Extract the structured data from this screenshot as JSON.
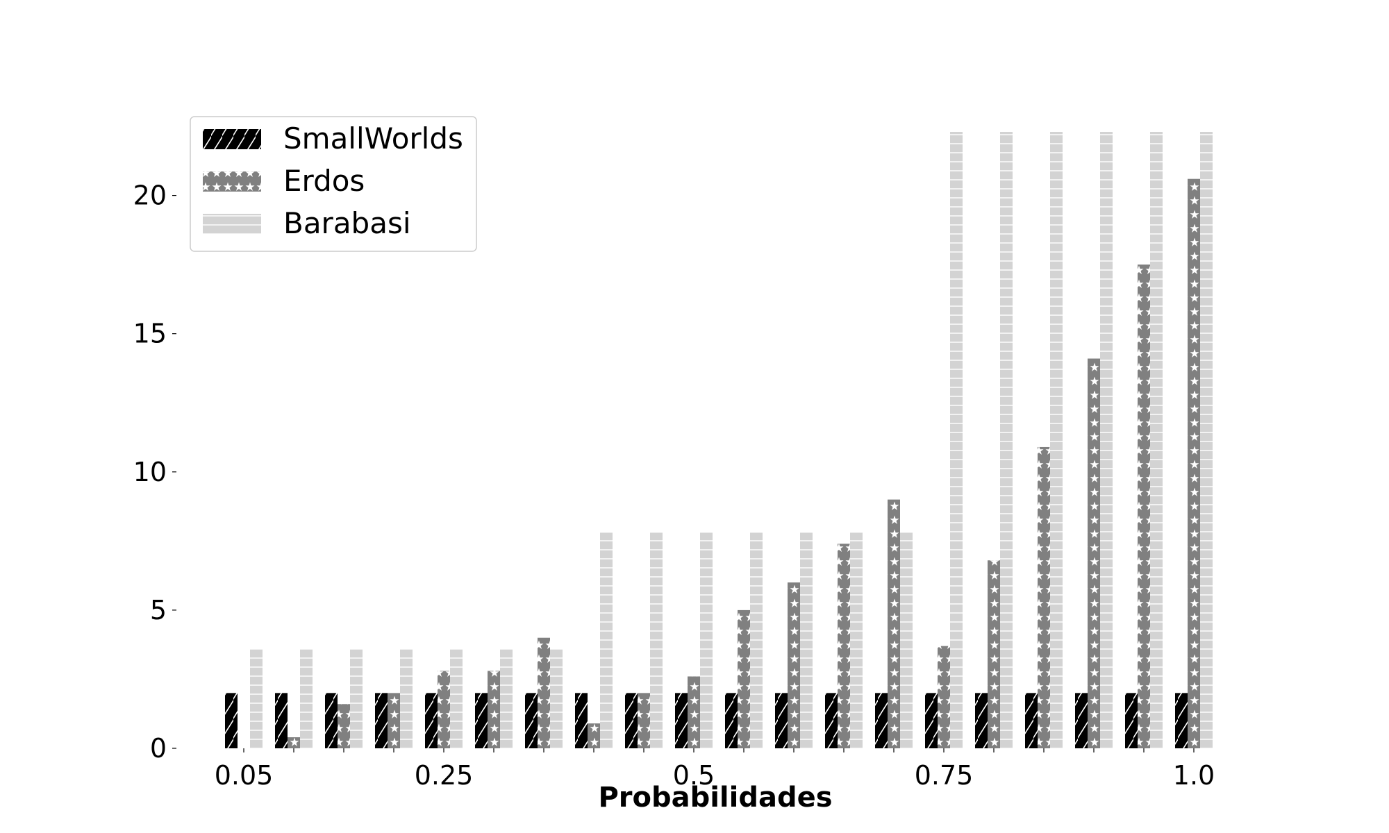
{
  "chart_data": {
    "type": "bar",
    "title": "",
    "xlabel": "Probabilidades",
    "ylabel": "",
    "ylim": [
      0,
      22.3
    ],
    "yticks": [
      0,
      5,
      10,
      15,
      20
    ],
    "categories": [
      "0.05",
      "0.1",
      "0.15",
      "0.2",
      "0.25",
      "0.3",
      "0.35",
      "0.4",
      "0.45",
      "0.5",
      "0.55",
      "0.6",
      "0.65",
      "0.7",
      "0.75",
      "0.8",
      "0.85",
      "0.9",
      "0.95",
      "1.0"
    ],
    "xtick_labels": [
      {
        "index": 0,
        "label": "0.05"
      },
      {
        "index": 4,
        "label": "0.25"
      },
      {
        "index": 9,
        "label": "0.5"
      },
      {
        "index": 14,
        "label": "0.75"
      },
      {
        "index": 19,
        "label": "1.0"
      }
    ],
    "series": [
      {
        "name": "SmallWorlds",
        "color": "#000000",
        "pattern": "hatch-diagonal",
        "values": [
          2,
          2,
          2,
          2,
          2,
          2,
          2,
          2,
          2,
          2,
          2,
          2,
          2,
          2,
          2,
          2,
          2,
          2,
          2,
          2
        ]
      },
      {
        "name": "Erdos",
        "color": "#808080",
        "pattern": "stars",
        "values": [
          0,
          0.4,
          1.6,
          2.0,
          2.8,
          2.8,
          4.0,
          0.9,
          2.0,
          2.6,
          5.0,
          6.0,
          7.4,
          9.0,
          3.7,
          6.8,
          10.9,
          14.1,
          17.5,
          20.6
        ]
      },
      {
        "name": "Barabasi",
        "color": "#d3d3d3",
        "pattern": "horizontal-lines",
        "values": [
          3.6,
          3.6,
          3.6,
          3.6,
          3.6,
          3.6,
          3.6,
          7.8,
          7.8,
          7.8,
          7.8,
          7.8,
          7.8,
          7.8,
          22.3,
          22.3,
          22.3,
          22.3,
          22.3,
          22.3
        ]
      }
    ],
    "legend": {
      "position": "top-left"
    },
    "grid": false
  }
}
